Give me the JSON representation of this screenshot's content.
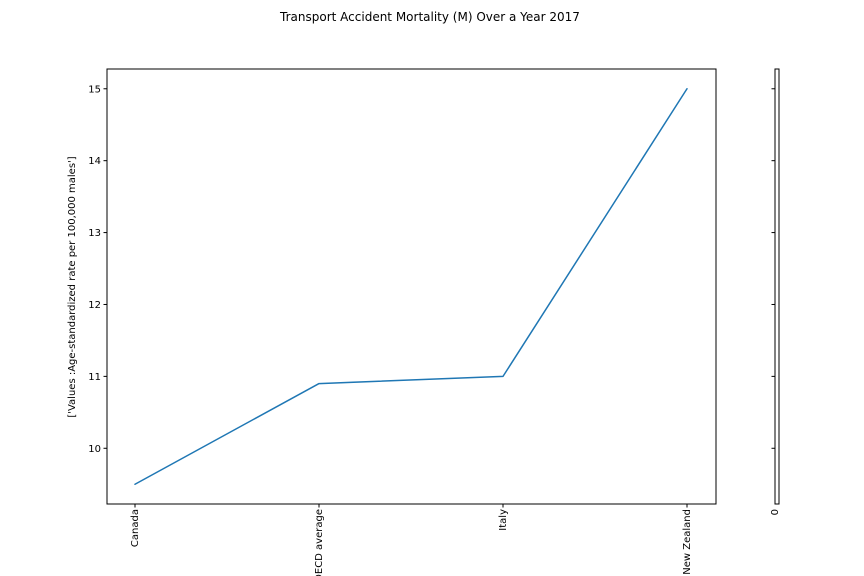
{
  "chart_data": {
    "type": "line",
    "title": "Transport Accident Mortality (M) Over a Year 2017",
    "categories": [
      "Canada",
      "OECD average",
      "Italy",
      "New Zealand"
    ],
    "values": [
      9.5,
      10.9,
      11.0,
      15.0
    ],
    "xlabel": "",
    "ylabel": "['Values :Age-standardized rate per 100,000 males']",
    "yticks": [
      10,
      11,
      12,
      13,
      14,
      15
    ],
    "ylim": [
      9.225,
      15.275
    ],
    "line_color": "#1f77b4",
    "secondary_axis_tick_label": "0",
    "legend": "none",
    "grid": false
  }
}
